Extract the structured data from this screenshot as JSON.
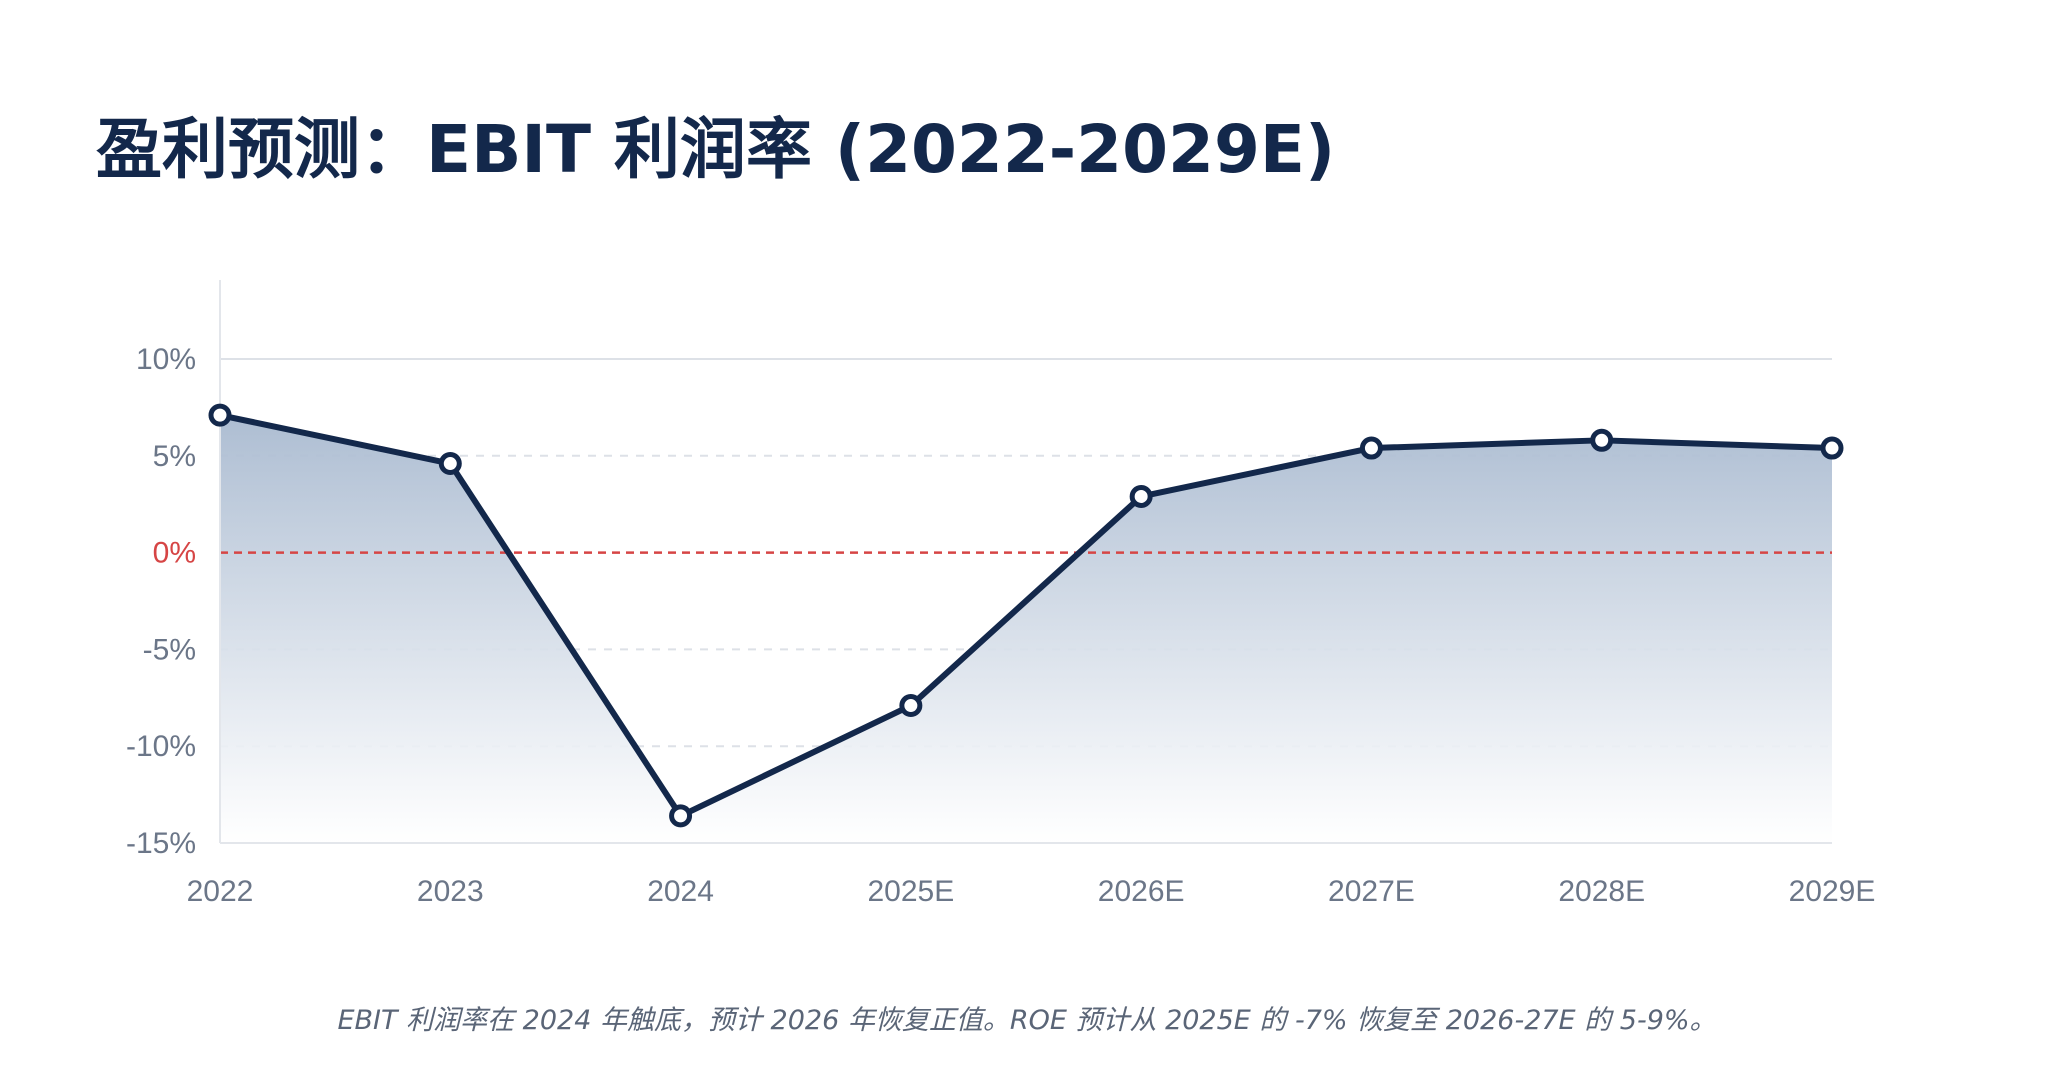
{
  "page": {
    "title": "盈利预测：EBIT 利润率 (2022-2029E)",
    "caption": "EBIT 利润率在 2024 年触底，预计 2026 年恢复正值。ROE 预计从 2025E 的 -7% 恢复至 2026-27E 的 5-9%。"
  },
  "colors": {
    "title": "#13284b",
    "line": "#13284b",
    "zero_line": "#d64545",
    "axis_text": "#6b7688",
    "grid": "#dde1e7",
    "area_top": "#a9bad0",
    "area_bottom": "#ffffff"
  },
  "chart_data": {
    "type": "area",
    "title": "盈利预测：EBIT 利润率 (2022-2029E)",
    "categories": [
      "2022",
      "2023",
      "2024",
      "2025E",
      "2026E",
      "2027E",
      "2028E",
      "2029E"
    ],
    "series": [
      {
        "name": "EBIT 利润率",
        "values": [
          7.1,
          4.6,
          -13.6,
          -7.9,
          2.9,
          5.4,
          5.8,
          5.4
        ]
      }
    ],
    "y_ticks": [
      10,
      5,
      0,
      -5,
      -10,
      -15
    ],
    "y_tick_labels": [
      "10%",
      "5%",
      "0%",
      "-5%",
      "-10%",
      "-15%"
    ],
    "ylim": [
      -15,
      14
    ],
    "xlabel": "",
    "ylabel": "",
    "grid": true,
    "reference_line": 0
  }
}
